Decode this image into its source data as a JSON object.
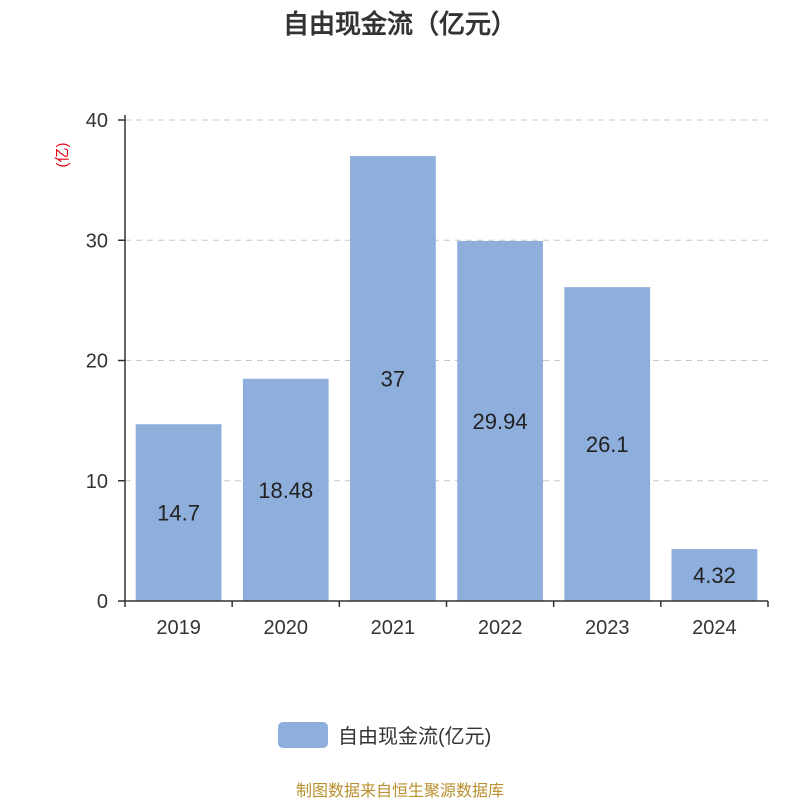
{
  "chart_data": {
    "type": "bar",
    "title": "自由现金流（亿元）",
    "ylabel": "(亿)",
    "xlabel": "",
    "categories": [
      "2019",
      "2020",
      "2021",
      "2022",
      "2023",
      "2024"
    ],
    "series": [
      {
        "name": "自由现金流(亿元)",
        "values": [
          14.7,
          18.48,
          37,
          29.94,
          26.1,
          4.32
        ]
      }
    ],
    "ylim": [
      0,
      40
    ],
    "yticks": [
      0,
      10,
      20,
      30,
      40
    ],
    "grid": true,
    "legend": "bottom-center",
    "data_labels": "inside-center"
  },
  "colors": {
    "bar": "#8eaedb",
    "ylabel": "#e60012",
    "footer": "#b8902e"
  },
  "footer": "制图数据来自恒生聚源数据库"
}
